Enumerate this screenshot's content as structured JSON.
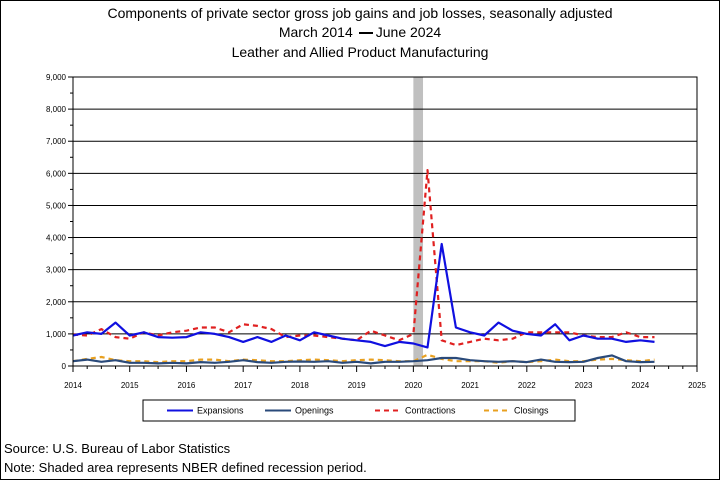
{
  "chart_data": {
    "type": "line",
    "title": "Components of private sector gross job gains and job losses, seasonally adjusted",
    "subtitle_start": "March 2014",
    "subtitle_end": "June 2024",
    "subtitle2": "Leather and Allied Product Manufacturing",
    "ylim": [
      0,
      9000
    ],
    "yticks": [
      "0",
      "1,000",
      "2,000",
      "3,000",
      "4,000",
      "5,000",
      "6,000",
      "7,000",
      "8,000",
      "9,000"
    ],
    "xlim": [
      2014,
      2025
    ],
    "xticks": [
      "2014",
      "2015",
      "2016",
      "2017",
      "2018",
      "2019",
      "2020",
      "2021",
      "2022",
      "2023",
      "2024",
      "2025"
    ],
    "grid": "horizontal",
    "legend_position": "bottom",
    "recession": {
      "start": 2020.0,
      "end": 2020.17
    },
    "x": [
      2014.0,
      2014.25,
      2014.5,
      2014.75,
      2015.0,
      2015.25,
      2015.5,
      2015.75,
      2016.0,
      2016.25,
      2016.5,
      2016.75,
      2017.0,
      2017.25,
      2017.5,
      2017.75,
      2018.0,
      2018.25,
      2018.5,
      2018.75,
      2019.0,
      2019.25,
      2019.5,
      2019.75,
      2020.0,
      2020.25,
      2020.5,
      2020.75,
      2021.0,
      2021.25,
      2021.5,
      2021.75,
      2022.0,
      2022.25,
      2022.5,
      2022.75,
      2023.0,
      2023.25,
      2023.5,
      2023.75,
      2024.0,
      2024.25
    ],
    "series": [
      {
        "name": "Expansions",
        "color": "#1010e0",
        "dash": "solid",
        "width": 2.2,
        "values": [
          950,
          1050,
          1000,
          1350,
          950,
          1050,
          900,
          880,
          900,
          1050,
          1000,
          900,
          750,
          900,
          750,
          950,
          800,
          1050,
          950,
          850,
          800,
          750,
          620,
          750,
          700,
          580,
          3800,
          1200,
          1050,
          950,
          1350,
          1100,
          1000,
          950,
          1300,
          800,
          950,
          850,
          850,
          750,
          800,
          750
        ]
      },
      {
        "name": "Openings",
        "color": "#2a4a7a",
        "dash": "solid",
        "width": 2.2,
        "values": [
          150,
          200,
          130,
          180,
          100,
          100,
          80,
          100,
          80,
          120,
          100,
          130,
          180,
          120,
          100,
          130,
          140,
          130,
          150,
          100,
          130,
          80,
          130,
          130,
          150,
          180,
          250,
          250,
          180,
          150,
          130,
          150,
          120,
          200,
          130,
          120,
          130,
          250,
          330,
          150,
          120,
          130
        ]
      },
      {
        "name": "Contractions",
        "color": "#e02020",
        "dash": "5,4",
        "width": 2.2,
        "values": [
          980,
          950,
          1150,
          900,
          850,
          1050,
          950,
          1050,
          1100,
          1200,
          1200,
          1050,
          1300,
          1250,
          1150,
          900,
          950,
          950,
          900,
          850,
          800,
          1100,
          950,
          800,
          1000,
          6100,
          800,
          650,
          750,
          850,
          800,
          850,
          1050,
          1050,
          1050,
          1050,
          950,
          900,
          900,
          1050,
          900,
          900
        ]
      },
      {
        "name": "Closings",
        "color": "#e8a020",
        "dash": "5,4",
        "width": 2.2,
        "values": [
          150,
          220,
          280,
          180,
          150,
          150,
          120,
          150,
          150,
          200,
          200,
          150,
          200,
          180,
          150,
          150,
          180,
          200,
          180,
          150,
          180,
          200,
          180,
          150,
          150,
          350,
          220,
          150,
          150,
          150,
          100,
          150,
          120,
          150,
          200,
          150,
          150,
          200,
          220,
          180,
          150,
          200
        ]
      }
    ]
  },
  "source_label": "Source: U.S. Bureau of Labor Statistics",
  "note_label": "Note: Shaded area represents NBER defined recession period."
}
